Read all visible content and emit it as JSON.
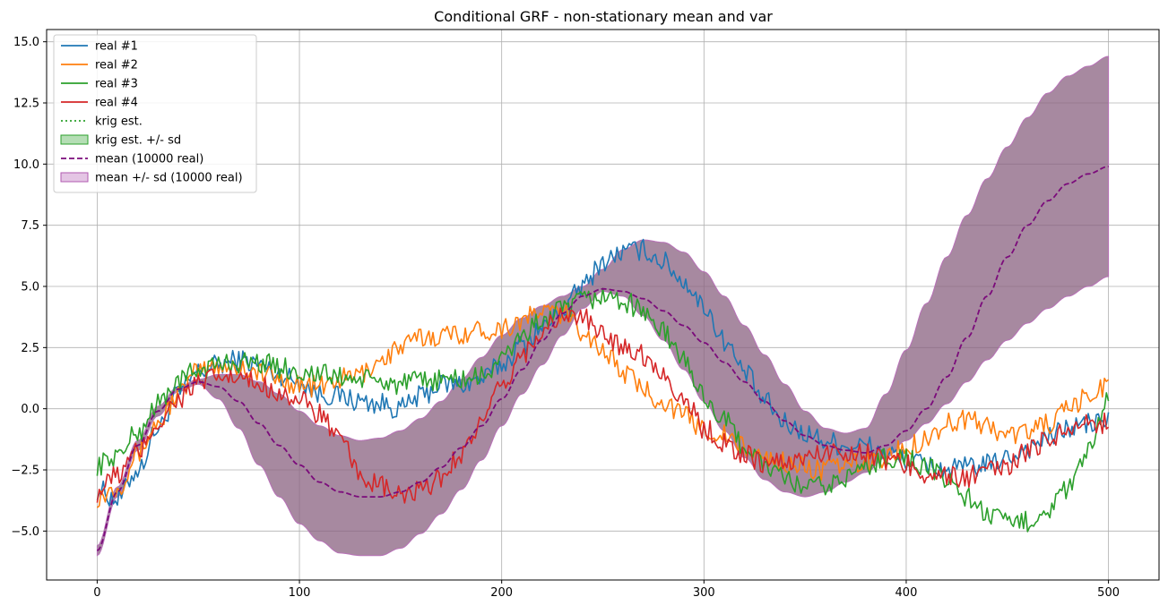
{
  "chart_data": {
    "type": "line",
    "title": "Conditional GRF - non-stationary mean and var",
    "xlabel": "",
    "ylabel": "",
    "xlim": [
      -25,
      525
    ],
    "ylim": [
      -7,
      15.5
    ],
    "xticks": [
      0,
      100,
      200,
      300,
      400,
      500
    ],
    "xtick_labels": [
      "0",
      "100",
      "200",
      "300",
      "400",
      "500"
    ],
    "yticks": [
      -5.0,
      -2.5,
      0.0,
      2.5,
      5.0,
      7.5,
      10.0,
      12.5,
      15.0
    ],
    "ytick_labels": [
      "−5.0",
      "−2.5",
      "0.0",
      "2.5",
      "5.0",
      "7.5",
      "10.0",
      "12.5",
      "15.0"
    ],
    "grid": true,
    "legend_position": "top-left",
    "legend": [
      {
        "label": "real #1",
        "kind": "line",
        "color": "#1f77b4"
      },
      {
        "label": "real #2",
        "kind": "line",
        "color": "#ff7f0e"
      },
      {
        "label": "real #3",
        "kind": "line",
        "color": "#2ca02c"
      },
      {
        "label": "real #4",
        "kind": "line",
        "color": "#d62728"
      },
      {
        "label": "krig est.",
        "kind": "dotted",
        "color": "#2ca02c"
      },
      {
        "label": "krig est. +/- sd",
        "kind": "patch",
        "color": "#2ca02c"
      },
      {
        "label": "mean (10000 real)",
        "kind": "dashed",
        "color": "#7b0b7b"
      },
      {
        "label": "mean +/- sd (10000 real)",
        "kind": "patch",
        "color": "#b15ab1"
      }
    ],
    "mean": {
      "name": "mean (10000 real)",
      "x": [
        0,
        10,
        20,
        30,
        40,
        50,
        60,
        70,
        80,
        90,
        100,
        110,
        120,
        130,
        140,
        150,
        160,
        170,
        180,
        190,
        200,
        210,
        220,
        230,
        240,
        250,
        260,
        270,
        280,
        290,
        300,
        310,
        320,
        330,
        340,
        350,
        360,
        370,
        380,
        390,
        400,
        410,
        420,
        430,
        440,
        450,
        460,
        470,
        480,
        490,
        500
      ],
      "y": [
        -5.8,
        -3.4,
        -1.5,
        -0.1,
        0.8,
        1.1,
        0.9,
        0.3,
        -0.6,
        -1.5,
        -2.3,
        -3.0,
        -3.4,
        -3.6,
        -3.6,
        -3.4,
        -3.0,
        -2.4,
        -1.6,
        -0.7,
        0.4,
        1.6,
        2.8,
        3.9,
        4.6,
        4.9,
        4.8,
        4.5,
        4.0,
        3.4,
        2.7,
        1.9,
        1.1,
        0.3,
        -0.5,
        -1.1,
        -1.5,
        -1.7,
        -1.8,
        -1.5,
        -0.9,
        0.0,
        1.3,
        2.9,
        4.6,
        6.2,
        7.5,
        8.5,
        9.2,
        9.6,
        9.9
      ]
    },
    "band": {
      "name": "mean +/- sd (10000 real)",
      "x": [
        0,
        10,
        20,
        30,
        40,
        50,
        60,
        70,
        80,
        90,
        100,
        110,
        120,
        130,
        140,
        150,
        160,
        170,
        180,
        190,
        200,
        210,
        220,
        230,
        240,
        250,
        260,
        270,
        280,
        290,
        300,
        310,
        320,
        330,
        340,
        350,
        360,
        370,
        380,
        390,
        400,
        410,
        420,
        430,
        440,
        450,
        460,
        470,
        480,
        490,
        500
      ],
      "lower": [
        -6.0,
        -3.6,
        -1.7,
        -0.3,
        0.7,
        1.0,
        0.4,
        -0.8,
        -2.3,
        -3.6,
        -4.7,
        -5.4,
        -5.9,
        -6.0,
        -6.0,
        -5.7,
        -5.1,
        -4.3,
        -3.3,
        -2.1,
        -0.7,
        0.6,
        1.8,
        3.0,
        4.1,
        4.8,
        4.6,
        3.8,
        2.8,
        1.6,
        0.3,
        -0.9,
        -2.0,
        -2.9,
        -3.4,
        -3.6,
        -3.4,
        -3.0,
        -2.6,
        -2.0,
        -1.3,
        -0.6,
        0.2,
        1.1,
        2.0,
        2.8,
        3.5,
        4.1,
        4.6,
        5.0,
        5.4
      ],
      "upper": [
        -5.6,
        -3.2,
        -1.3,
        0.1,
        0.9,
        1.2,
        1.4,
        1.4,
        1.1,
        0.6,
        -0.1,
        -0.7,
        -1.1,
        -1.3,
        -1.2,
        -0.9,
        -0.4,
        0.3,
        1.2,
        2.1,
        3.0,
        3.7,
        4.2,
        4.6,
        5.0,
        5.7,
        6.5,
        6.9,
        6.8,
        6.4,
        5.6,
        4.6,
        3.4,
        2.2,
        1.0,
        -0.1,
        -0.8,
        -1.0,
        -0.8,
        0.6,
        2.4,
        4.3,
        6.2,
        7.9,
        9.4,
        10.7,
        11.9,
        12.9,
        13.6,
        14.0,
        14.4
      ]
    },
    "series": [
      {
        "name": "real #1",
        "color": "#1f77b4",
        "x": [
          0,
          10,
          20,
          30,
          40,
          50,
          60,
          70,
          80,
          90,
          100,
          110,
          120,
          130,
          140,
          150,
          160,
          170,
          180,
          190,
          200,
          210,
          220,
          230,
          240,
          250,
          260,
          270,
          280,
          290,
          300,
          310,
          320,
          330,
          340,
          350,
          360,
          370,
          380,
          390,
          400,
          410,
          420,
          430,
          440,
          450,
          460,
          470,
          480,
          490,
          500
        ],
        "y": [
          -3.3,
          -3.7,
          -2.5,
          -0.8,
          0.6,
          1.5,
          1.8,
          2.0,
          1.8,
          1.4,
          1.1,
          0.6,
          0.5,
          0.3,
          0.2,
          0.0,
          0.5,
          1.0,
          1.0,
          1.2,
          1.8,
          2.6,
          3.3,
          4.0,
          5.0,
          6.0,
          6.4,
          6.5,
          6.0,
          5.2,
          4.2,
          2.8,
          1.5,
          0.3,
          -0.6,
          -1.0,
          -1.3,
          -1.5,
          -1.5,
          -1.8,
          -2.1,
          -2.3,
          -2.5,
          -2.4,
          -2.3,
          -2.0,
          -1.6,
          -1.2,
          -0.8,
          -0.6,
          -0.5
        ]
      },
      {
        "name": "real #2",
        "color": "#ff7f0e",
        "x": [
          0,
          10,
          20,
          30,
          40,
          50,
          60,
          70,
          80,
          90,
          100,
          110,
          120,
          130,
          140,
          150,
          160,
          170,
          180,
          190,
          200,
          210,
          220,
          230,
          240,
          250,
          260,
          270,
          280,
          290,
          300,
          310,
          320,
          330,
          340,
          350,
          360,
          370,
          380,
          390,
          400,
          410,
          420,
          430,
          440,
          450,
          460,
          470,
          480,
          490,
          500
        ],
        "y": [
          -3.6,
          -3.2,
          -1.8,
          -0.6,
          0.6,
          1.5,
          1.8,
          1.7,
          1.5,
          1.2,
          1.0,
          0.9,
          1.2,
          1.4,
          2.0,
          2.5,
          2.9,
          3.0,
          3.1,
          3.2,
          3.3,
          3.6,
          4.0,
          3.9,
          3.2,
          2.4,
          1.5,
          0.8,
          0.3,
          -0.3,
          -0.8,
          -1.1,
          -1.6,
          -2.0,
          -2.2,
          -2.4,
          -2.5,
          -2.3,
          -2.2,
          -2.0,
          -1.6,
          -1.2,
          -0.6,
          -0.4,
          -0.7,
          -1.1,
          -0.9,
          -0.6,
          -0.1,
          0.5,
          1.0
        ]
      },
      {
        "name": "real #3",
        "color": "#2ca02c",
        "x": [
          0,
          10,
          20,
          30,
          40,
          50,
          60,
          70,
          80,
          90,
          100,
          110,
          120,
          130,
          140,
          150,
          160,
          170,
          180,
          190,
          200,
          210,
          220,
          230,
          240,
          250,
          260,
          270,
          280,
          290,
          300,
          310,
          320,
          330,
          340,
          350,
          360,
          370,
          380,
          390,
          400,
          410,
          420,
          430,
          440,
          450,
          460,
          470,
          480,
          490,
          500
        ],
        "y": [
          -2.3,
          -1.9,
          -1.0,
          0.2,
          1.1,
          1.6,
          1.8,
          1.9,
          1.9,
          1.7,
          1.5,
          1.4,
          1.3,
          1.2,
          1.1,
          1.0,
          1.1,
          1.2,
          1.2,
          1.3,
          2.0,
          3.0,
          3.6,
          4.0,
          4.4,
          4.6,
          4.4,
          4.0,
          3.1,
          2.0,
          0.5,
          -0.5,
          -1.5,
          -2.3,
          -2.9,
          -3.2,
          -3.2,
          -2.8,
          -2.4,
          -2.0,
          -2.0,
          -2.4,
          -2.9,
          -3.6,
          -4.3,
          -4.7,
          -4.6,
          -4.1,
          -3.3,
          -1.8,
          0.3
        ]
      },
      {
        "name": "real #4",
        "color": "#d62728",
        "x": [
          0,
          10,
          20,
          30,
          40,
          50,
          60,
          70,
          80,
          90,
          100,
          110,
          120,
          130,
          140,
          150,
          160,
          170,
          180,
          190,
          200,
          210,
          220,
          230,
          240,
          250,
          260,
          270,
          280,
          290,
          300,
          310,
          320,
          330,
          340,
          350,
          360,
          370,
          380,
          390,
          400,
          410,
          420,
          430,
          440,
          450,
          460,
          470,
          480,
          490,
          500
        ],
        "y": [
          -3.4,
          -2.7,
          -1.8,
          -0.6,
          0.4,
          1.0,
          1.3,
          1.2,
          1.0,
          0.7,
          0.3,
          -0.2,
          -1.3,
          -2.7,
          -3.2,
          -3.6,
          -3.4,
          -2.8,
          -1.8,
          -0.6,
          0.8,
          2.2,
          3.2,
          3.8,
          3.7,
          3.0,
          2.6,
          2.2,
          1.4,
          0.4,
          -0.8,
          -1.4,
          -1.9,
          -2.2,
          -2.2,
          -2.0,
          -1.8,
          -1.7,
          -1.8,
          -2.1,
          -2.3,
          -2.6,
          -2.8,
          -2.8,
          -2.6,
          -2.3,
          -1.8,
          -1.2,
          -0.8,
          -0.6,
          -0.6
        ]
      }
    ],
    "colors": {
      "band_fill": "#8a6280",
      "band_edge": "#b870b8",
      "mean_line": "#7b0b7b",
      "grid": "#b0b0b0",
      "axis": "#000000"
    }
  }
}
